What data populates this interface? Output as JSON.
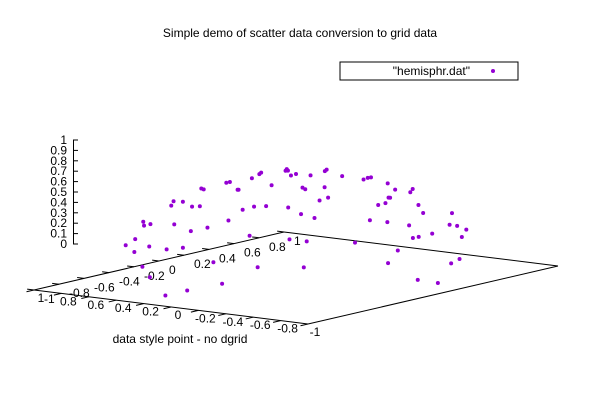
{
  "chart_data": {
    "type": "scatter",
    "title": "Simple demo of scatter data conversion to grid data",
    "xlabel": "data style point - no dgrid",
    "ylabel": "",
    "zlabel": "",
    "projection": "3d",
    "legend": {
      "position": "top-right",
      "entries": [
        {
          "label": "\"hemisphr.dat\"",
          "color": "#9400d3",
          "marker": "point"
        }
      ]
    },
    "xlim": [
      -1,
      1
    ],
    "ylim": [
      -1,
      1
    ],
    "zlim": [
      0,
      1
    ],
    "x_ticks": [
      "-1",
      "-0.8",
      "-0.6",
      "-0.4",
      "-0.2",
      "0",
      "0.2",
      "0.4",
      "0.6",
      "0.8",
      "1"
    ],
    "y_ticks": [
      "-1",
      "-0.8",
      "-0.6",
      "-0.4",
      "-0.2",
      "0",
      "0.2",
      "0.4",
      "0.6",
      "0.8",
      "1"
    ],
    "z_ticks": [
      "0",
      "0.1",
      "0.2",
      "0.3",
      "0.4",
      "0.5",
      "0.6",
      "0.7",
      "0.8",
      "0.9",
      "1"
    ],
    "grid": false,
    "series": [
      {
        "name": "\"hemisphr.dat\"",
        "color": "#9400d3",
        "points": [
          [
            0.0,
            0.0,
            1.0
          ],
          [
            0.15,
            0.1,
            0.98
          ],
          [
            -0.2,
            0.15,
            0.97
          ],
          [
            0.3,
            -0.2,
            0.93
          ],
          [
            -0.3,
            -0.1,
            0.95
          ],
          [
            0.1,
            -0.35,
            0.93
          ],
          [
            0.45,
            0.2,
            0.87
          ],
          [
            -0.45,
            0.3,
            0.84
          ],
          [
            0.2,
            0.45,
            0.87
          ],
          [
            -0.15,
            -0.5,
            0.85
          ],
          [
            0.6,
            -0.1,
            0.79
          ],
          [
            -0.6,
            0.0,
            0.8
          ],
          [
            0.0,
            0.6,
            0.8
          ],
          [
            0.35,
            0.5,
            0.79
          ],
          [
            -0.35,
            0.55,
            0.76
          ],
          [
            0.5,
            -0.45,
            0.74
          ],
          [
            -0.5,
            -0.4,
            0.77
          ],
          [
            0.7,
            0.3,
            0.65
          ],
          [
            -0.7,
            0.25,
            0.67
          ],
          [
            0.25,
            -0.7,
            0.67
          ],
          [
            -0.3,
            -0.7,
            0.65
          ],
          [
            0.75,
            -0.4,
            0.53
          ],
          [
            -0.75,
            -0.35,
            0.56
          ],
          [
            0.45,
            0.75,
            0.49
          ],
          [
            -0.5,
            0.7,
            0.51
          ],
          [
            0.85,
            0.1,
            0.52
          ],
          [
            -0.85,
            0.05,
            0.52
          ],
          [
            0.1,
            0.85,
            0.52
          ],
          [
            0.05,
            -0.85,
            0.52
          ],
          [
            0.9,
            -0.3,
            0.31
          ],
          [
            -0.9,
            -0.25,
            0.36
          ],
          [
            -0.3,
            0.9,
            0.31
          ],
          [
            0.3,
            -0.9,
            0.31
          ],
          [
            0.65,
            0.65,
            0.39
          ],
          [
            -0.65,
            0.65,
            0.39
          ],
          [
            0.65,
            -0.65,
            0.39
          ],
          [
            -0.65,
            -0.65,
            0.39
          ],
          [
            0.95,
            0.2,
            0.24
          ],
          [
            -0.95,
            0.2,
            0.24
          ],
          [
            0.2,
            0.95,
            0.24
          ],
          [
            0.2,
            -0.95,
            0.24
          ],
          [
            0.98,
            -0.1,
            0.17
          ],
          [
            -0.98,
            -0.1,
            0.17
          ],
          [
            -0.1,
            0.98,
            0.17
          ],
          [
            -0.1,
            -0.98,
            0.17
          ],
          [
            0.55,
            0.25,
            0.8
          ],
          [
            -0.25,
            0.3,
            0.92
          ],
          [
            0.4,
            -0.3,
            0.87
          ],
          [
            -0.4,
            -0.25,
            0.88
          ],
          [
            0.05,
            0.3,
            0.95
          ],
          [
            0.3,
            0.05,
            0.95
          ],
          [
            -0.05,
            -0.25,
            0.97
          ],
          [
            0.8,
            0.45,
            0.4
          ],
          [
            -0.8,
            0.45,
            0.4
          ],
          [
            0.45,
            -0.8,
            0.4
          ],
          [
            -0.45,
            -0.8,
            0.4
          ],
          [
            0.99,
            0.05,
            0.1
          ],
          [
            -0.99,
            0.05,
            0.1
          ],
          [
            0.05,
            0.99,
            0.1
          ],
          [
            0.05,
            -0.99,
            0.1
          ],
          [
            0.72,
            0.55,
            0.42
          ],
          [
            -0.58,
            -0.55,
            0.6
          ],
          [
            0.58,
            -0.58,
            0.57
          ],
          [
            -0.72,
            0.5,
            0.48
          ],
          [
            0.6,
            0.1,
            0.79
          ],
          [
            -0.15,
            0.75,
            0.64
          ],
          [
            0.2,
            -0.55,
            0.81
          ],
          [
            -0.55,
            0.15,
            0.82
          ],
          [
            0.35,
            0.3,
            0.89
          ],
          [
            -0.35,
            0.35,
            0.87
          ],
          [
            0.88,
            -0.2,
            0.43
          ],
          [
            -0.88,
            -0.15,
            0.45
          ],
          [
            0.15,
            0.88,
            0.45
          ],
          [
            -0.2,
            -0.88,
            0.43
          ],
          [
            0.92,
            0.3,
            0.25
          ],
          [
            -0.92,
            0.3,
            0.25
          ],
          [
            0.3,
            0.92,
            0.25
          ],
          [
            -0.3,
            -0.92,
            0.25
          ],
          [
            0.5,
            0.6,
            0.62
          ],
          [
            -0.5,
            -0.6,
            0.62
          ],
          [
            0.62,
            -0.3,
            0.72
          ],
          [
            -0.62,
            0.3,
            0.72
          ],
          [
            0.1,
            0.65,
            0.75
          ],
          [
            -0.1,
            -0.65,
            0.75
          ],
          [
            0.78,
            -0.05,
            0.62
          ],
          [
            -0.78,
            0.05,
            0.62
          ],
          [
            0.25,
            0.2,
            0.95
          ],
          [
            -0.25,
            -0.2,
            0.95
          ],
          [
            0.42,
            0.42,
            0.8
          ],
          [
            -0.42,
            -0.42,
            0.8
          ]
        ]
      }
    ]
  }
}
